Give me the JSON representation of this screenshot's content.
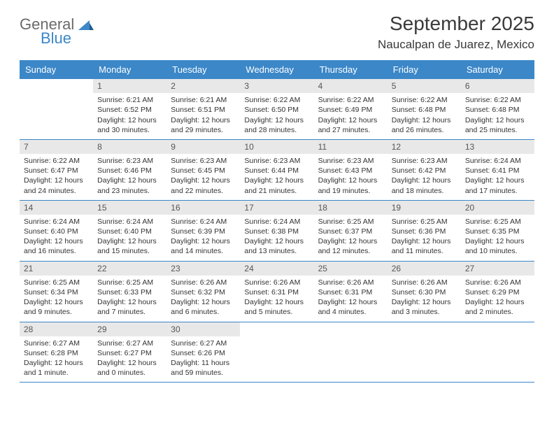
{
  "logo": {
    "text1": "General",
    "text2": "Blue"
  },
  "title": "September 2025",
  "location": "Naucalpan de Juarez, Mexico",
  "headers": [
    "Sunday",
    "Monday",
    "Tuesday",
    "Wednesday",
    "Thursday",
    "Friday",
    "Saturday"
  ],
  "header_bg": "#3b87c8",
  "daynum_bg": "#e8e8e8",
  "border_color": "#3b87c8",
  "weeks": [
    [
      null,
      {
        "n": "1",
        "sr": "Sunrise: 6:21 AM",
        "ss": "Sunset: 6:52 PM",
        "d1": "Daylight: 12 hours",
        "d2": "and 30 minutes."
      },
      {
        "n": "2",
        "sr": "Sunrise: 6:21 AM",
        "ss": "Sunset: 6:51 PM",
        "d1": "Daylight: 12 hours",
        "d2": "and 29 minutes."
      },
      {
        "n": "3",
        "sr": "Sunrise: 6:22 AM",
        "ss": "Sunset: 6:50 PM",
        "d1": "Daylight: 12 hours",
        "d2": "and 28 minutes."
      },
      {
        "n": "4",
        "sr": "Sunrise: 6:22 AM",
        "ss": "Sunset: 6:49 PM",
        "d1": "Daylight: 12 hours",
        "d2": "and 27 minutes."
      },
      {
        "n": "5",
        "sr": "Sunrise: 6:22 AM",
        "ss": "Sunset: 6:48 PM",
        "d1": "Daylight: 12 hours",
        "d2": "and 26 minutes."
      },
      {
        "n": "6",
        "sr": "Sunrise: 6:22 AM",
        "ss": "Sunset: 6:48 PM",
        "d1": "Daylight: 12 hours",
        "d2": "and 25 minutes."
      }
    ],
    [
      {
        "n": "7",
        "sr": "Sunrise: 6:22 AM",
        "ss": "Sunset: 6:47 PM",
        "d1": "Daylight: 12 hours",
        "d2": "and 24 minutes."
      },
      {
        "n": "8",
        "sr": "Sunrise: 6:23 AM",
        "ss": "Sunset: 6:46 PM",
        "d1": "Daylight: 12 hours",
        "d2": "and 23 minutes."
      },
      {
        "n": "9",
        "sr": "Sunrise: 6:23 AM",
        "ss": "Sunset: 6:45 PM",
        "d1": "Daylight: 12 hours",
        "d2": "and 22 minutes."
      },
      {
        "n": "10",
        "sr": "Sunrise: 6:23 AM",
        "ss": "Sunset: 6:44 PM",
        "d1": "Daylight: 12 hours",
        "d2": "and 21 minutes."
      },
      {
        "n": "11",
        "sr": "Sunrise: 6:23 AM",
        "ss": "Sunset: 6:43 PM",
        "d1": "Daylight: 12 hours",
        "d2": "and 19 minutes."
      },
      {
        "n": "12",
        "sr": "Sunrise: 6:23 AM",
        "ss": "Sunset: 6:42 PM",
        "d1": "Daylight: 12 hours",
        "d2": "and 18 minutes."
      },
      {
        "n": "13",
        "sr": "Sunrise: 6:24 AM",
        "ss": "Sunset: 6:41 PM",
        "d1": "Daylight: 12 hours",
        "d2": "and 17 minutes."
      }
    ],
    [
      {
        "n": "14",
        "sr": "Sunrise: 6:24 AM",
        "ss": "Sunset: 6:40 PM",
        "d1": "Daylight: 12 hours",
        "d2": "and 16 minutes."
      },
      {
        "n": "15",
        "sr": "Sunrise: 6:24 AM",
        "ss": "Sunset: 6:40 PM",
        "d1": "Daylight: 12 hours",
        "d2": "and 15 minutes."
      },
      {
        "n": "16",
        "sr": "Sunrise: 6:24 AM",
        "ss": "Sunset: 6:39 PM",
        "d1": "Daylight: 12 hours",
        "d2": "and 14 minutes."
      },
      {
        "n": "17",
        "sr": "Sunrise: 6:24 AM",
        "ss": "Sunset: 6:38 PM",
        "d1": "Daylight: 12 hours",
        "d2": "and 13 minutes."
      },
      {
        "n": "18",
        "sr": "Sunrise: 6:25 AM",
        "ss": "Sunset: 6:37 PM",
        "d1": "Daylight: 12 hours",
        "d2": "and 12 minutes."
      },
      {
        "n": "19",
        "sr": "Sunrise: 6:25 AM",
        "ss": "Sunset: 6:36 PM",
        "d1": "Daylight: 12 hours",
        "d2": "and 11 minutes."
      },
      {
        "n": "20",
        "sr": "Sunrise: 6:25 AM",
        "ss": "Sunset: 6:35 PM",
        "d1": "Daylight: 12 hours",
        "d2": "and 10 minutes."
      }
    ],
    [
      {
        "n": "21",
        "sr": "Sunrise: 6:25 AM",
        "ss": "Sunset: 6:34 PM",
        "d1": "Daylight: 12 hours",
        "d2": "and 9 minutes."
      },
      {
        "n": "22",
        "sr": "Sunrise: 6:25 AM",
        "ss": "Sunset: 6:33 PM",
        "d1": "Daylight: 12 hours",
        "d2": "and 7 minutes."
      },
      {
        "n": "23",
        "sr": "Sunrise: 6:26 AM",
        "ss": "Sunset: 6:32 PM",
        "d1": "Daylight: 12 hours",
        "d2": "and 6 minutes."
      },
      {
        "n": "24",
        "sr": "Sunrise: 6:26 AM",
        "ss": "Sunset: 6:31 PM",
        "d1": "Daylight: 12 hours",
        "d2": "and 5 minutes."
      },
      {
        "n": "25",
        "sr": "Sunrise: 6:26 AM",
        "ss": "Sunset: 6:31 PM",
        "d1": "Daylight: 12 hours",
        "d2": "and 4 minutes."
      },
      {
        "n": "26",
        "sr": "Sunrise: 6:26 AM",
        "ss": "Sunset: 6:30 PM",
        "d1": "Daylight: 12 hours",
        "d2": "and 3 minutes."
      },
      {
        "n": "27",
        "sr": "Sunrise: 6:26 AM",
        "ss": "Sunset: 6:29 PM",
        "d1": "Daylight: 12 hours",
        "d2": "and 2 minutes."
      }
    ],
    [
      {
        "n": "28",
        "sr": "Sunrise: 6:27 AM",
        "ss": "Sunset: 6:28 PM",
        "d1": "Daylight: 12 hours",
        "d2": "and 1 minute."
      },
      {
        "n": "29",
        "sr": "Sunrise: 6:27 AM",
        "ss": "Sunset: 6:27 PM",
        "d1": "Daylight: 12 hours",
        "d2": "and 0 minutes."
      },
      {
        "n": "30",
        "sr": "Sunrise: 6:27 AM",
        "ss": "Sunset: 6:26 PM",
        "d1": "Daylight: 11 hours",
        "d2": "and 59 minutes."
      },
      null,
      null,
      null,
      null
    ]
  ]
}
